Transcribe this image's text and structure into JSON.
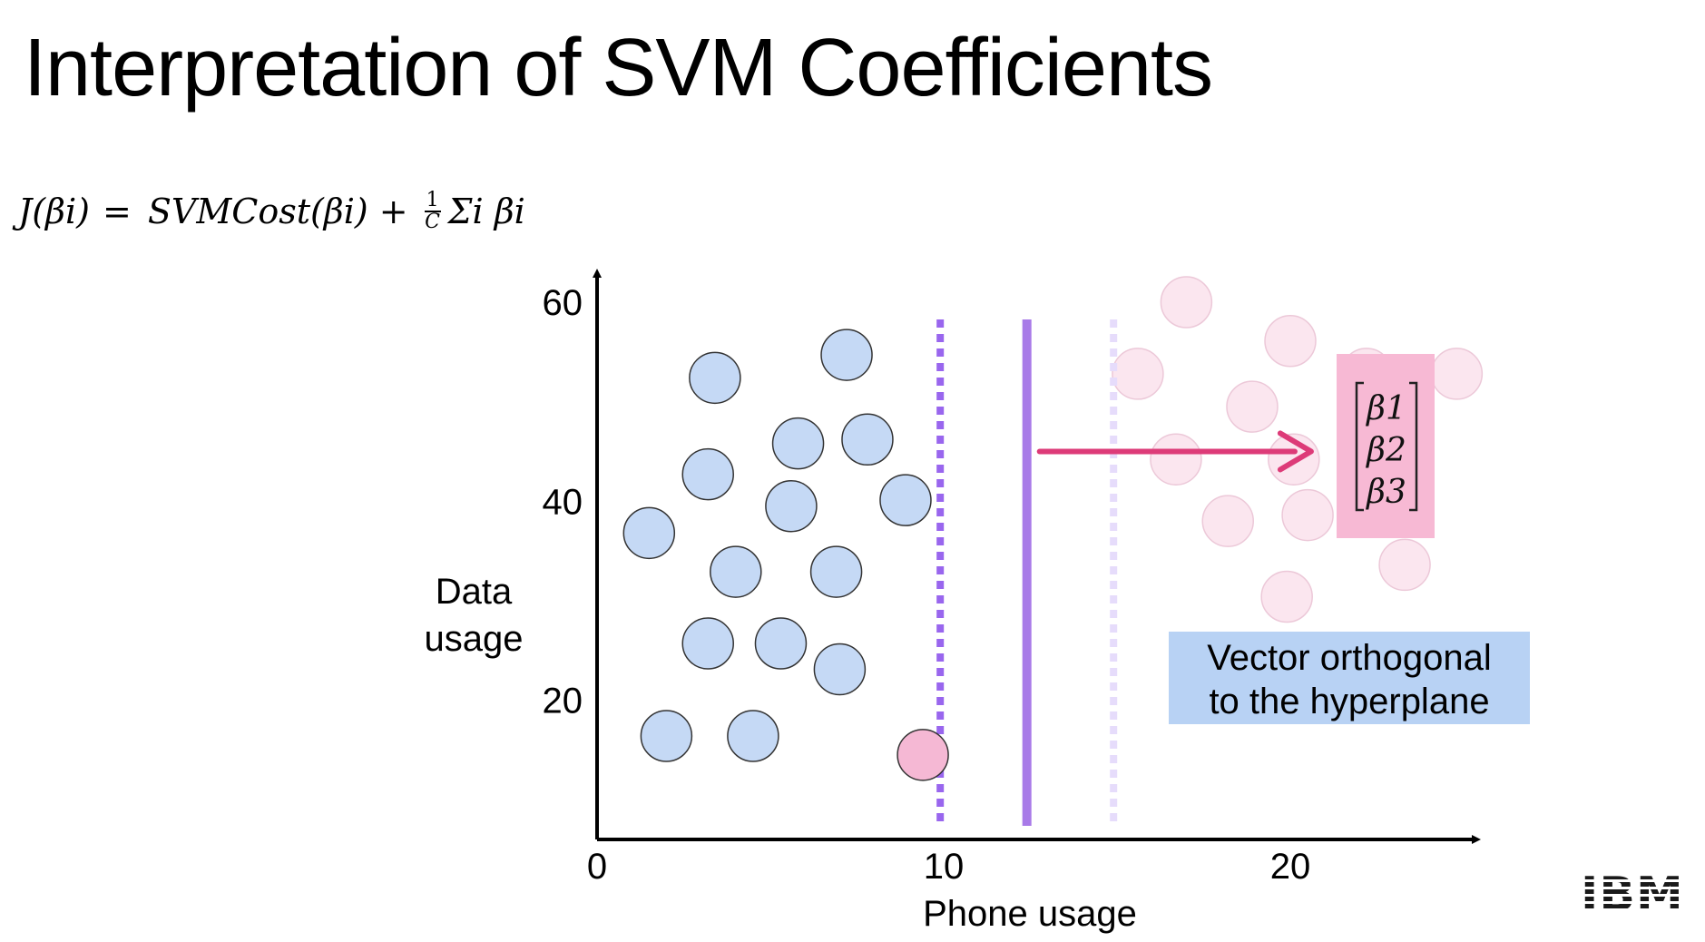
{
  "slide": {
    "title": "Interpretation of SVM Coefficients",
    "formula": {
      "lhs": "J(βi)",
      "equals": "=",
      "cost": "SVMCost(βi)",
      "plus": "+",
      "frac_num": "1",
      "frac_den": "C",
      "sum": "Σi βi"
    },
    "logo": "IBM"
  },
  "colors": {
    "blue_point": "#c5d9f5",
    "pink_point": "#f5b8d4",
    "faded_pink_point": "#fbe6ef",
    "hyperplane": "#a87ae8",
    "margin_left": "#9966ee",
    "margin_right": "#e6dcfb",
    "arrow": "#dd3b78",
    "beta_box": "#f7b9d4",
    "note_box": "#b8d2f4"
  },
  "chart_data": {
    "type": "scatter",
    "xlabel": "Phone usage",
    "ylabel": "Data\nusage",
    "x_ticks": [
      "0",
      "10",
      "20"
    ],
    "y_ticks": [
      "20",
      "40",
      "60"
    ],
    "xlim": [
      0,
      25
    ],
    "ylim": [
      6,
      60
    ],
    "grid": false,
    "series": [
      {
        "class": "blue",
        "points": [
          [
            3.4,
            52.4
          ],
          [
            7.2,
            54.7
          ],
          [
            5.8,
            45.8
          ],
          [
            7.8,
            46.2
          ],
          [
            3.2,
            42.7
          ],
          [
            5.6,
            39.5
          ],
          [
            8.9,
            40.1
          ],
          [
            1.5,
            36.8
          ],
          [
            4.0,
            32.9
          ],
          [
            6.9,
            32.9
          ],
          [
            3.2,
            25.7
          ],
          [
            5.3,
            25.7
          ],
          [
            7.0,
            23.1
          ],
          [
            2.0,
            16.4
          ],
          [
            4.5,
            16.4
          ]
        ]
      },
      {
        "class": "pink",
        "points": [
          [
            9.4,
            14.5
          ]
        ]
      },
      {
        "class": "pink-faded",
        "points": [
          [
            17.0,
            60.0
          ],
          [
            20.0,
            56.1
          ],
          [
            15.6,
            52.8
          ],
          [
            22.2,
            52.8
          ],
          [
            24.8,
            52.8
          ],
          [
            18.9,
            49.5
          ],
          [
            16.7,
            44.2
          ],
          [
            20.1,
            44.2
          ],
          [
            18.2,
            38.0
          ],
          [
            20.5,
            38.6
          ],
          [
            23.3,
            33.6
          ],
          [
            19.9,
            30.4
          ]
        ]
      }
    ],
    "hyperplane_x": 12.4,
    "margin_lines_x": [
      9.9,
      14.9
    ],
    "arrow": {
      "from": [
        12.4,
        45.0
      ],
      "to": [
        20.6,
        45.0
      ]
    },
    "annotations": {
      "beta_vector": [
        "β1",
        "β2",
        "β3"
      ],
      "note_line1": "Vector orthogonal",
      "note_line2": "to the hyperplane"
    }
  }
}
